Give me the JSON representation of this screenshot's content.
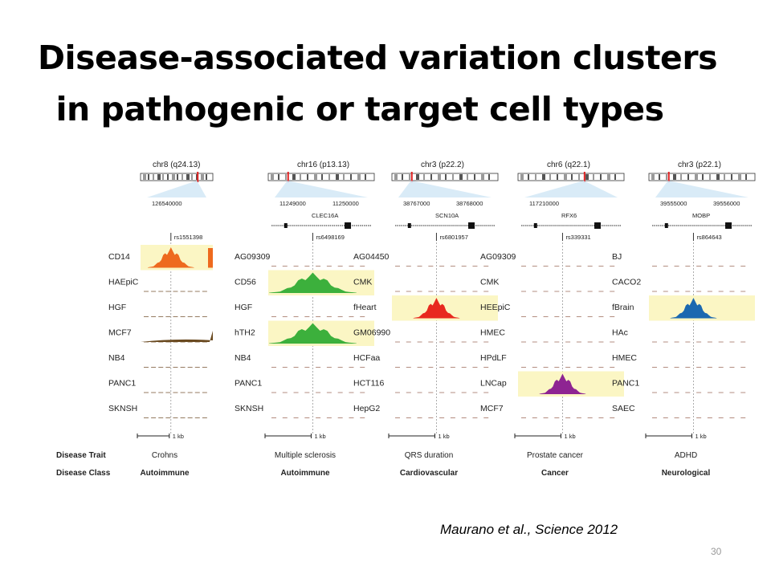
{
  "slide": {
    "title_line1": "Disease-associated variation clusters",
    "title_line2": "in pathogenic or target cell types",
    "citation": "Maurano et al., Science 2012",
    "page_number": "30"
  },
  "footer_labels": {
    "trait": "Disease Trait",
    "class": "Disease Class"
  },
  "panels": [
    {
      "chrom": "chr8 (q24.13)",
      "coord1": "126540000",
      "coord2": "",
      "gene": "",
      "snp": "rs1551398",
      "scale": "1 kb",
      "trait": "Crohns",
      "class": "Autoimmune",
      "highlight_color": "#ee6a1e",
      "cells": [
        "CD14",
        "HAEpiC",
        "HGF",
        "MCF7",
        "NB4",
        "PANC1",
        "SKNSH"
      ],
      "highlight_rows": [
        0
      ]
    },
    {
      "chrom": "chr16 (p13.13)",
      "coord1": "11249000",
      "coord2": "11250000",
      "gene": "CLEC16A",
      "snp": "rs6498169",
      "scale": "1 kb",
      "trait": "Multiple sclerosis",
      "class": "Autoimmune",
      "highlight_color": "#3cb03c",
      "cells": [
        "AG09309",
        "CD56",
        "HGF",
        "hTH2",
        "NB4",
        "PANC1",
        "SKNSH"
      ],
      "highlight_rows": [
        1,
        3
      ]
    },
    {
      "chrom": "chr3 (p22.2)",
      "coord1": "38767000",
      "coord2": "38768000",
      "gene": "SCN10A",
      "snp": "rs6801957",
      "scale": "1 kb",
      "trait": "QRS duration",
      "class": "Cardiovascular",
      "highlight_color": "#e8291e",
      "cells": [
        "AG04450",
        "CMK",
        "fHeart",
        "GM06990",
        "HCFaa",
        "HCT116",
        "HepG2"
      ],
      "highlight_rows": [
        2
      ]
    },
    {
      "chrom": "chr6 (q22.1)",
      "coord1": "117210000",
      "coord2": "",
      "gene": "RFX6",
      "snp": "rs339331",
      "scale": "1 kb",
      "trait": "Prostate cancer",
      "class": "Cancer",
      "highlight_color": "#8e2492",
      "cells": [
        "AG09309",
        "CMK",
        "HEEpiC",
        "HMEC",
        "HPdLF",
        "LNCap",
        "MCF7"
      ],
      "highlight_rows": [
        5
      ]
    },
    {
      "chrom": "chr3 (p22.1)",
      "coord1": "39555000",
      "coord2": "39556000",
      "gene": "MOBP",
      "snp": "rs864643",
      "scale": "1 kb",
      "trait": "ADHD",
      "class": "Neurological",
      "highlight_color": "#1a68b0",
      "cells": [
        "BJ",
        "CACO2",
        "fBrain",
        "HAc",
        "HMEC",
        "PANC1",
        "SAEC"
      ],
      "highlight_rows": [
        2
      ]
    }
  ]
}
